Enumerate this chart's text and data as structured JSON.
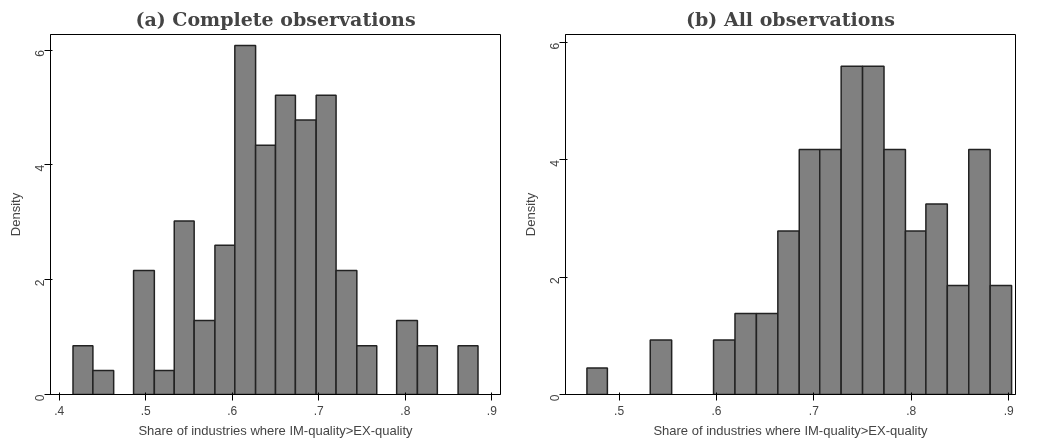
{
  "chart_data": [
    {
      "type": "histogram",
      "title": "(a) Complete observations",
      "xlabel": "Share of industries where IM-quality>EX-quality",
      "ylabel": "Density",
      "color": "#808080",
      "bins": [
        0.416,
        0.439,
        0.463,
        0.486,
        0.51,
        0.533,
        0.556,
        0.58,
        0.603,
        0.627,
        0.65,
        0.673,
        0.697,
        0.72,
        0.744,
        0.767,
        0.79,
        0.814,
        0.837,
        0.861,
        0.884
      ],
      "values": [
        0.85,
        0.42,
        0,
        2.16,
        0.42,
        3.02,
        1.29,
        2.6,
        6.08,
        4.34,
        5.21,
        4.78,
        5.21,
        2.16,
        0.85,
        0,
        1.29,
        0.85,
        0,
        0.85
      ],
      "xlim": [
        0.39,
        0.91
      ],
      "ylim": [
        0,
        6.27
      ],
      "xticks": [
        {
          "value": 0.4,
          "label": ".4"
        },
        {
          "value": 0.5,
          "label": ".5"
        },
        {
          "value": 0.6,
          "label": ".6"
        },
        {
          "value": 0.7,
          "label": ".7"
        },
        {
          "value": 0.8,
          "label": ".8"
        },
        {
          "value": 0.9,
          "label": ".9"
        }
      ],
      "yticks": [
        0,
        2,
        4,
        6
      ],
      "grid": false
    },
    {
      "type": "histogram",
      "title": "(b) All observations",
      "xlabel": "Share of industries where IM-quality>EX-quality",
      "ylabel": "Density",
      "color": "#808080",
      "bins": [
        0.467,
        0.488,
        0.532,
        0.554,
        0.597,
        0.619,
        0.641,
        0.663,
        0.685,
        0.706,
        0.728,
        0.75,
        0.772,
        0.794,
        0.815,
        0.837,
        0.859,
        0.881,
        0.903
      ],
      "values": [
        0.45,
        0,
        0.93,
        0,
        0.93,
        1.38,
        1.38,
        2.79,
        4.18,
        4.18,
        5.6,
        5.6,
        4.18,
        2.79,
        3.25,
        1.86,
        4.18,
        1.86
      ],
      "xlim": [
        0.445,
        0.907
      ],
      "ylim": [
        0,
        6.14
      ],
      "xticks": [
        {
          "value": 0.5,
          "label": ".5"
        },
        {
          "value": 0.6,
          "label": ".6"
        },
        {
          "value": 0.7,
          "label": ".7"
        },
        {
          "value": 0.8,
          "label": ".8"
        },
        {
          "value": 0.9,
          "label": ".9"
        }
      ],
      "yticks": [
        0,
        2,
        4,
        6
      ],
      "grid": false
    }
  ]
}
